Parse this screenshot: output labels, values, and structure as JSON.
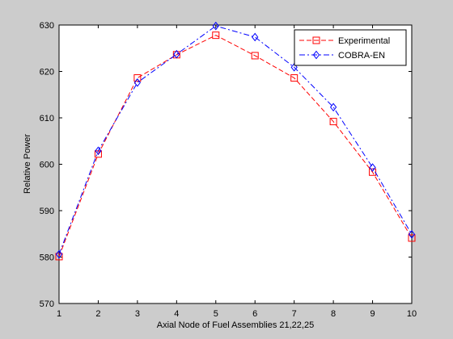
{
  "chart_data": {
    "type": "line",
    "title": "",
    "xlabel": "Axial Node of Fuel Assemblies 21,22,25",
    "ylabel": "Relative Power",
    "xlim": [
      1,
      10
    ],
    "ylim": [
      570,
      630
    ],
    "x": [
      1,
      2,
      3,
      4,
      5,
      6,
      7,
      8,
      9,
      10
    ],
    "x_ticks": [
      "1",
      "2",
      "3",
      "4",
      "5",
      "6",
      "7",
      "8",
      "9",
      "10"
    ],
    "y_ticks": [
      "570",
      "580",
      "590",
      "600",
      "610",
      "620",
      "630"
    ],
    "y_tick_values": [
      570,
      580,
      590,
      600,
      610,
      620,
      630
    ],
    "grid": false,
    "legend": "top-right",
    "series": [
      {
        "name": "Experimental",
        "values": [
          580.1,
          602.2,
          618.6,
          623.6,
          627.8,
          623.4,
          618.6,
          609.2,
          598.3,
          584.1
        ],
        "color": "#ff0000",
        "line_style": "dashed",
        "marker": "square"
      },
      {
        "name": "COBRA-EN",
        "values": [
          580.6,
          602.9,
          617.6,
          623.7,
          629.8,
          627.4,
          620.9,
          612.3,
          599.3,
          584.9
        ],
        "color": "#0000ff",
        "line_style": "dash-dot",
        "marker": "diamond"
      }
    ]
  }
}
